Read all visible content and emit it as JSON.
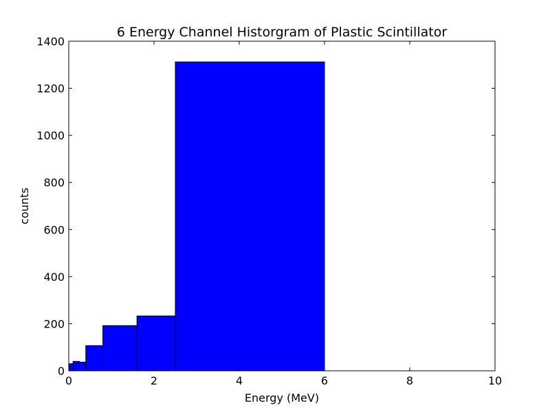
{
  "chart_data": {
    "type": "bar",
    "title": "6 Energy Channel Historgram of Plastic Scintillator",
    "xlabel": "Energy (MeV)",
    "ylabel": "counts",
    "xlim": [
      0,
      10
    ],
    "ylim": [
      0,
      1400
    ],
    "xticks": [
      0,
      2,
      4,
      6,
      8,
      10
    ],
    "yticks": [
      0,
      200,
      400,
      600,
      800,
      1000,
      1200,
      1400
    ],
    "grid": false,
    "bar_color": "#0000ff",
    "bins": [
      {
        "x0": 0.0,
        "x1": 0.1,
        "count": 30
      },
      {
        "x0": 0.1,
        "x1": 0.25,
        "count": 40
      },
      {
        "x0": 0.25,
        "x1": 0.4,
        "count": 37
      },
      {
        "x0": 0.4,
        "x1": 0.8,
        "count": 107
      },
      {
        "x0": 0.8,
        "x1": 1.6,
        "count": 192
      },
      {
        "x0": 1.6,
        "x1": 2.5,
        "count": 233
      },
      {
        "x0": 2.5,
        "x1": 6.0,
        "count": 1312
      }
    ]
  }
}
